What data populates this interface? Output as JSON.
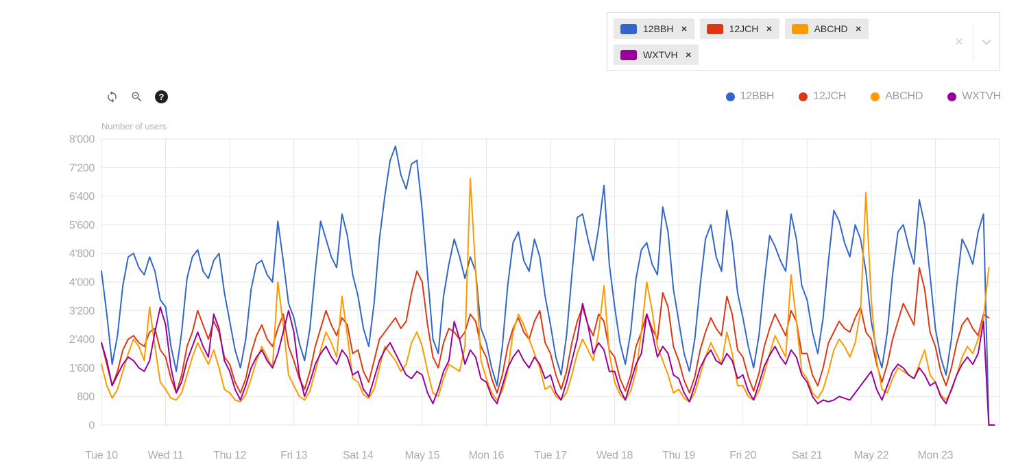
{
  "filter": {
    "tags": [
      {
        "name": "12BBH",
        "color": "#3366CC"
      },
      {
        "name": "12JCH",
        "color": "#DC3912"
      },
      {
        "name": "ABCHD",
        "color": "#FF9900"
      },
      {
        "name": "WXTVH",
        "color": "#990099"
      }
    ],
    "remove_glyph": "✕",
    "clear_glyph": "✕"
  },
  "toolbar": {
    "help_glyph": "?"
  },
  "chart_data": {
    "type": "line",
    "title": "",
    "ylabel": "Number of users",
    "xlabel": "",
    "ylim": [
      0,
      8000
    ],
    "grid": true,
    "legend_position": "top-right",
    "y_tick_values": [
      8000,
      7200,
      6400,
      5600,
      4800,
      4000,
      3200,
      2400,
      1600,
      800,
      0
    ],
    "y_tick_labels": [
      "8'000",
      "7'200",
      "6'400",
      "5'600",
      "4'800",
      "4'000",
      "3'200",
      "2'400",
      "1'600",
      "800",
      "0"
    ],
    "categories": [
      "Tue 10",
      "Wed 11",
      "Thu 12",
      "Fri 13",
      "Sat 14",
      "May 15",
      "Mon 16",
      "Tue 17",
      "Wed 18",
      "Thu 19",
      "Fri 20",
      "Sat 21",
      "May 22",
      "Mon 23"
    ],
    "x_days_total": 14,
    "sample_interval_hours": 2,
    "series": [
      {
        "name": "12BBH",
        "color": "#3366CC",
        "values": [
          4300,
          3100,
          1700,
          2500,
          3900,
          4700,
          4800,
          4400,
          4200,
          4700,
          4300,
          3500,
          3300,
          2200,
          1500,
          2600,
          4100,
          4700,
          4900,
          4300,
          4100,
          4600,
          4800,
          3700,
          2900,
          2100,
          1600,
          2400,
          3800,
          4500,
          4600,
          4200,
          4000,
          5700,
          4600,
          3400,
          3000,
          2300,
          1800,
          2700,
          4300,
          5700,
          5200,
          4700,
          4400,
          5900,
          5300,
          4200,
          3600,
          2700,
          2200,
          3400,
          5200,
          6400,
          7400,
          7800,
          7000,
          6600,
          7300,
          7400,
          6000,
          4200,
          2400,
          2000,
          3600,
          4500,
          5200,
          4700,
          4100,
          4700,
          4300,
          2700,
          2300,
          1600,
          1100,
          2200,
          3900,
          5100,
          5400,
          4600,
          4300,
          5200,
          4700,
          3600,
          2800,
          1900,
          1400,
          2500,
          4200,
          5800,
          5900,
          5200,
          4600,
          5500,
          6700,
          4500,
          3300,
          2300,
          1700,
          2600,
          4100,
          4900,
          5100,
          4500,
          4200,
          6100,
          5400,
          3800,
          2900,
          2000,
          1500,
          2400,
          3900,
          5200,
          5600,
          4700,
          4300,
          6000,
          5100,
          3700,
          3000,
          2200,
          1600,
          2500,
          4000,
          5300,
          5000,
          4600,
          4300,
          5900,
          5200,
          3900,
          3500,
          2600,
          2000,
          3000,
          4600,
          6000,
          5700,
          5100,
          4700,
          5600,
          5200,
          4300,
          2900,
          2100,
          1600,
          2600,
          4200,
          5400,
          5600,
          5000,
          4500,
          6300,
          5600,
          4200,
          2700,
          1900,
          1400,
          2400,
          3900,
          5200,
          4900,
          4500,
          5400,
          5900,
          0,
          0
        ]
      },
      {
        "name": "12JCH",
        "color": "#DC3912",
        "values": [
          2300,
          1700,
          1100,
          1500,
          2100,
          2400,
          2500,
          2300,
          2200,
          2600,
          2700,
          2100,
          1900,
          1300,
          900,
          1400,
          2200,
          2600,
          3200,
          2800,
          2400,
          2900,
          2600,
          1900,
          1700,
          1200,
          900,
          1300,
          2000,
          2500,
          2800,
          2400,
          2200,
          2700,
          3100,
          2200,
          1800,
          1300,
          1000,
          1500,
          2200,
          2700,
          3200,
          2800,
          2500,
          3000,
          2800,
          2000,
          2100,
          1500,
          1200,
          1800,
          2400,
          2600,
          2800,
          3000,
          2700,
          2900,
          3700,
          4300,
          4000,
          2800,
          1900,
          1600,
          2300,
          2700,
          2600,
          2400,
          2600,
          3100,
          2900,
          2200,
          1900,
          1300,
          900,
          1400,
          2200,
          2700,
          3000,
          2600,
          2400,
          2900,
          3200,
          2300,
          2000,
          1400,
          1000,
          1500,
          2300,
          2900,
          3300,
          2800,
          2500,
          3100,
          2900,
          2100,
          1900,
          1300,
          950,
          1400,
          2200,
          2600,
          3100,
          2700,
          2400,
          3700,
          3300,
          2200,
          1800,
          1250,
          900,
          1350,
          2100,
          2600,
          3000,
          2700,
          2500,
          3600,
          3100,
          2100,
          1900,
          1350,
          950,
          1450,
          2200,
          2700,
          3100,
          2800,
          2500,
          3200,
          2900,
          2000,
          2000,
          1400,
          1100,
          1600,
          2300,
          2600,
          2900,
          2700,
          2600,
          3000,
          3300,
          2600,
          2400,
          1700,
          1200,
          1700,
          2400,
          2900,
          3400,
          3100,
          2800,
          4400,
          3800,
          2600,
          2200,
          1500,
          1100,
          1600,
          2300,
          2800,
          3000,
          2700,
          2500,
          3100,
          3000,
          null
        ]
      },
      {
        "name": "ABCHD",
        "color": "#FF9900",
        "values": [
          1700,
          1100,
          750,
          1000,
          1500,
          2000,
          2400,
          2200,
          1800,
          3300,
          2200,
          1200,
          1000,
          750,
          700,
          900,
          1400,
          1900,
          2300,
          2000,
          1700,
          2100,
          1600,
          1000,
          900,
          700,
          650,
          850,
          1300,
          1800,
          2200,
          1900,
          1600,
          4000,
          2800,
          1400,
          1100,
          800,
          700,
          950,
          1500,
          2100,
          2600,
          2300,
          1900,
          3600,
          2500,
          1300,
          1200,
          850,
          750,
          1000,
          1600,
          2200,
          2000,
          1800,
          1500,
          1700,
          2300,
          2600,
          2200,
          1500,
          900,
          800,
          1300,
          1700,
          1600,
          1500,
          2200,
          6900,
          4300,
          1800,
          1300,
          900,
          700,
          950,
          1500,
          2600,
          3100,
          2800,
          2400,
          2000,
          1600,
          1000,
          1100,
          800,
          700,
          900,
          1400,
          2000,
          2400,
          2100,
          1800,
          2600,
          3900,
          2000,
          1200,
          850,
          700,
          950,
          1500,
          2600,
          4000,
          3200,
          2200,
          1800,
          1400,
          900,
          1000,
          750,
          650,
          900,
          1400,
          1900,
          2300,
          2000,
          1700,
          2600,
          2000,
          1100,
          1100,
          800,
          700,
          950,
          1450,
          2000,
          2500,
          2200,
          1900,
          4200,
          2900,
          1500,
          1300,
          900,
          750,
          1000,
          1500,
          2100,
          2400,
          2200,
          1900,
          2300,
          3200,
          6500,
          3500,
          1800,
          1000,
          900,
          1300,
          1600,
          1500,
          1400,
          1300,
          1700,
          2100,
          1400,
          1200,
          850,
          700,
          950,
          1400,
          1900,
          2200,
          2000,
          2400,
          3000,
          4400,
          null
        ]
      },
      {
        "name": "WXTVH",
        "color": "#990099",
        "values": [
          2300,
          1800,
          1100,
          1400,
          1700,
          1900,
          1800,
          1600,
          1500,
          1800,
          2600,
          3300,
          2800,
          1600,
          900,
          1200,
          1800,
          2200,
          2600,
          2200,
          1900,
          3100,
          2700,
          1800,
          1500,
          1000,
          700,
          1100,
          1600,
          1900,
          2100,
          1800,
          1600,
          2000,
          2600,
          3200,
          2600,
          1400,
          800,
          1200,
          1700,
          2000,
          2200,
          1900,
          1700,
          2100,
          1900,
          1400,
          1500,
          1000,
          800,
          1300,
          1800,
          2100,
          2300,
          2000,
          1700,
          1400,
          1300,
          1500,
          1400,
          900,
          600,
          1000,
          1500,
          1800,
          2900,
          2400,
          1700,
          2100,
          1900,
          1300,
          1200,
          800,
          600,
          1100,
          1600,
          1900,
          2100,
          1800,
          1600,
          1900,
          1700,
          1300,
          1400,
          900,
          700,
          1200,
          1800,
          2400,
          3400,
          2800,
          2000,
          2300,
          2100,
          1500,
          1500,
          1000,
          700,
          1200,
          1700,
          2000,
          3100,
          2600,
          1900,
          2200,
          2000,
          1400,
          1300,
          900,
          650,
          1100,
          1600,
          1900,
          2100,
          1800,
          1700,
          2000,
          1800,
          1300,
          1400,
          950,
          700,
          1150,
          1650,
          1950,
          2200,
          1900,
          1700,
          2100,
          1900,
          1400,
          1200,
          800,
          600,
          700,
          650,
          700,
          800,
          750,
          700,
          900,
          1100,
          1300,
          1500,
          1000,
          700,
          1100,
          1500,
          1700,
          1600,
          1400,
          1300,
          1600,
          1400,
          1100,
          1200,
          800,
          600,
          1000,
          1400,
          1700,
          1900,
          1700,
          2000,
          2900,
          0,
          0
        ]
      }
    ]
  }
}
